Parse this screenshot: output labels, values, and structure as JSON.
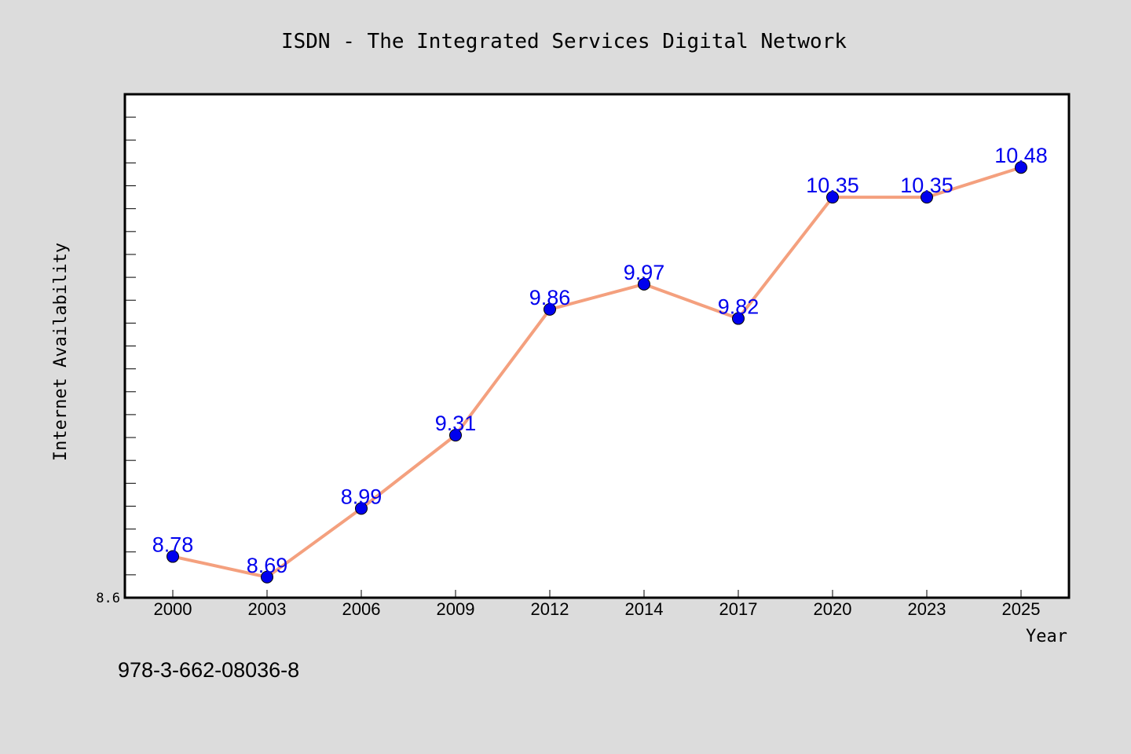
{
  "chart_data": {
    "type": "line",
    "title": "ISDN - The Integrated Services Digital Network",
    "xlabel": "Year",
    "ylabel": "Internet Availability",
    "categories": [
      "2000",
      "2003",
      "2006",
      "2009",
      "2012",
      "2014",
      "2017",
      "2020",
      "2023",
      "2025"
    ],
    "series": [
      {
        "values": [
          8.78,
          8.69,
          8.99,
          9.31,
          9.86,
          9.97,
          9.82,
          10.35,
          10.35,
          10.48
        ],
        "labels": [
          "8.78",
          "8.69",
          "8.99",
          "9.31",
          "9.86",
          "9.97",
          "9.82",
          "10.35",
          "10.35",
          "10.48"
        ],
        "line_color": "#f4a07e",
        "marker_color": "#0000ee",
        "label_color": "#0000ee"
      }
    ],
    "ylim": [
      8.6,
      10.8
    ],
    "y_tick_labels": [
      "8.6"
    ],
    "grid": false,
    "legend": "none"
  },
  "annotation": {
    "text": "978-3-662-08036-8"
  },
  "colors": {
    "background": "#dcdcdc",
    "plot_background": "#ffffff",
    "axis": "#000000"
  }
}
